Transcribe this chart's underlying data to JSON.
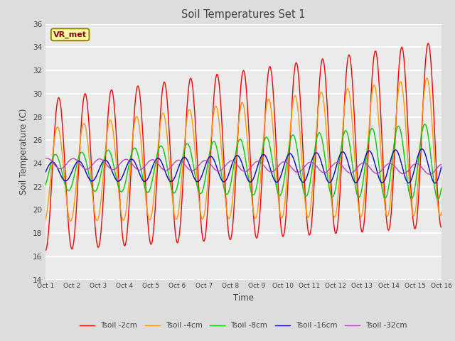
{
  "title": "Soil Temperatures Set 1",
  "xlabel": "Time",
  "ylabel": "Soil Temperature (C)",
  "ylim": [
    14,
    36
  ],
  "yticks": [
    14,
    16,
    18,
    20,
    22,
    24,
    26,
    28,
    30,
    32,
    34,
    36
  ],
  "num_days": 15,
  "points_per_day": 48,
  "annotation_text": "VR_met",
  "colors": {
    "Tsoil -2cm": "#ff0000",
    "Tsoil -4cm": "#ff9900",
    "Tsoil -8cm": "#00cc00",
    "Tsoil -16cm": "#0000cc",
    "Tsoil -32cm": "#bb44bb"
  },
  "background_color": "#dddddd",
  "plot_bg_color": "#ebebeb",
  "grid_color": "#ffffff",
  "title_color": "#444444",
  "label_color": "#444444"
}
